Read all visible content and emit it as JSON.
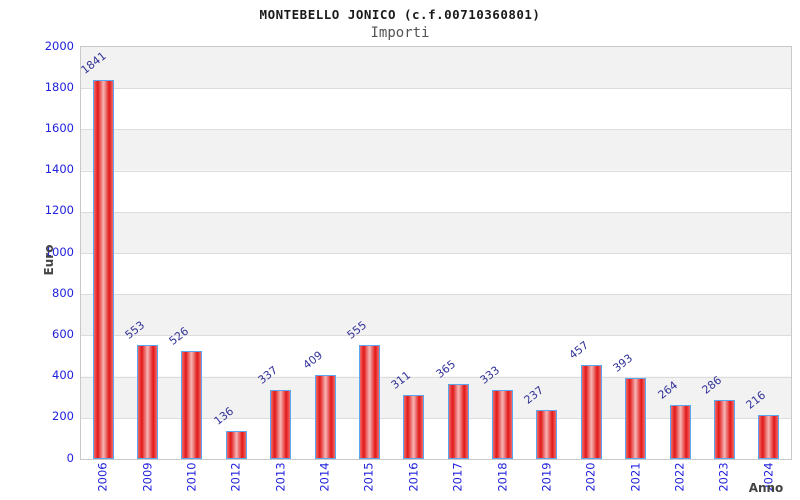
{
  "header": {
    "title": "MONTEBELLO JONICO (c.f.00710360801)",
    "subtitle": "Importi"
  },
  "axes": {
    "y_label": "Euro",
    "x_label": "Anno"
  },
  "colors": {
    "title": "#1a1a1a",
    "subtitle": "#555555",
    "axis_label": "#444444",
    "tick_label": "#2121dd",
    "value_label": "#333399",
    "bar_edge": "#ef6a6a",
    "bar_main": "#e31717",
    "bar_center": "#f5b6b6",
    "bar_border": "#5aa7f0",
    "band_gray": "#f2f2f2",
    "grid": "#dcdcdc"
  },
  "chart_data": {
    "type": "bar",
    "title": "MONTEBELLO JONICO (c.f.00710360801)",
    "subtitle": "Importi",
    "xlabel": "Anno",
    "ylabel": "Euro",
    "categories": [
      "2006",
      "2009",
      "2010",
      "2012",
      "2013",
      "2014",
      "2015",
      "2016",
      "2017",
      "2018",
      "2019",
      "2020",
      "2021",
      "2022",
      "2023",
      "2024"
    ],
    "values": [
      1841,
      553,
      526,
      136,
      337,
      409,
      555,
      311,
      365,
      333,
      237,
      457,
      393,
      264,
      286,
      216
    ],
    "ylim": [
      0,
      2000
    ],
    "ytick_step": 200,
    "yticks": [
      0,
      200,
      400,
      600,
      800,
      1000,
      1200,
      1400,
      1600,
      1800,
      2000
    ],
    "grid": true,
    "alternating_bands": true,
    "legend": false
  }
}
